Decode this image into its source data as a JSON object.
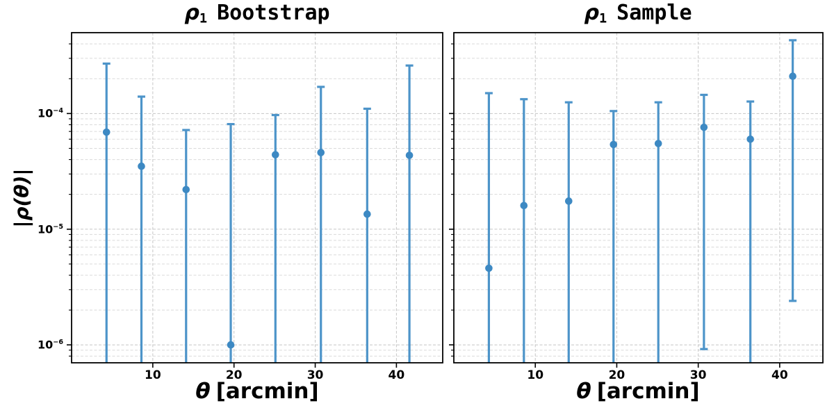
{
  "figure": {
    "background": "#ffffff",
    "errorbar_color": "#4d94c9",
    "marker_color": "#3d89c3",
    "grid_major_color": "#c6c6c6",
    "grid_minor_color": "#dadada",
    "spine_color": "#000000"
  },
  "chart_data": [
    {
      "type": "scatter",
      "title": {
        "rho": "ρ",
        "sub": "1",
        "rest": "Bootstrap"
      },
      "xlabel": {
        "theta": "θ",
        "rest": "[arcmin]"
      },
      "ylabel": "|ρ(θ)|",
      "x_scale": "linear",
      "y_scale": "log",
      "grid": true,
      "xlim": [
        0,
        45.7
      ],
      "ylim": [
        7e-07,
        0.0005
      ],
      "xticks": [
        10,
        20,
        30,
        40
      ],
      "yticks": [
        {
          "base": "10",
          "exp": "−4",
          "value": 0.0001
        },
        {
          "base": "10",
          "exp": "−5",
          "value": 1e-05
        },
        {
          "base": "10",
          "exp": "−6",
          "value": 1e-06
        }
      ],
      "x": [
        4.3,
        8.6,
        14.1,
        19.6,
        25.1,
        30.7,
        36.4,
        41.6
      ],
      "y": [
        6.9e-05,
        3.5e-05,
        2.2e-05,
        1e-06,
        4.4e-05,
        4.6e-05,
        1.35e-05,
        4.35e-05
      ],
      "err_upper": [
        0.00027,
        0.00014,
        7.2e-05,
        8.1e-05,
        9.7e-05,
        0.00017,
        0.00011,
        0.00026
      ],
      "err_lower": [
        null,
        null,
        null,
        null,
        null,
        null,
        null,
        null
      ]
    },
    {
      "type": "scatter",
      "title": {
        "rho": "ρ",
        "sub": "1",
        "rest": "Sample"
      },
      "xlabel": {
        "theta": "θ",
        "rest": "[arcmin]"
      },
      "x_scale": "linear",
      "y_scale": "log",
      "grid": true,
      "xlim": [
        0,
        45.3
      ],
      "ylim": [
        7e-07,
        0.0005
      ],
      "xticks": [
        10,
        20,
        30,
        40
      ],
      "yticks": [
        {
          "base": "10",
          "exp": "−4",
          "value": 0.0001
        },
        {
          "base": "10",
          "exp": "−5",
          "value": 1e-05
        },
        {
          "base": "10",
          "exp": "−6",
          "value": 1e-06
        }
      ],
      "x": [
        4.3,
        8.6,
        14.1,
        19.6,
        25.1,
        30.7,
        36.4,
        41.6
      ],
      "y": [
        4.6e-06,
        1.6e-05,
        1.75e-05,
        5.4e-05,
        5.5e-05,
        7.6e-05,
        6e-05,
        0.00021
      ],
      "err_upper": [
        0.00015,
        0.000133,
        0.000125,
        0.000105,
        0.000125,
        0.000145,
        0.000127,
        0.00043
      ],
      "err_lower": [
        null,
        null,
        null,
        null,
        null,
        9.2e-07,
        null,
        2.4e-06
      ]
    }
  ]
}
